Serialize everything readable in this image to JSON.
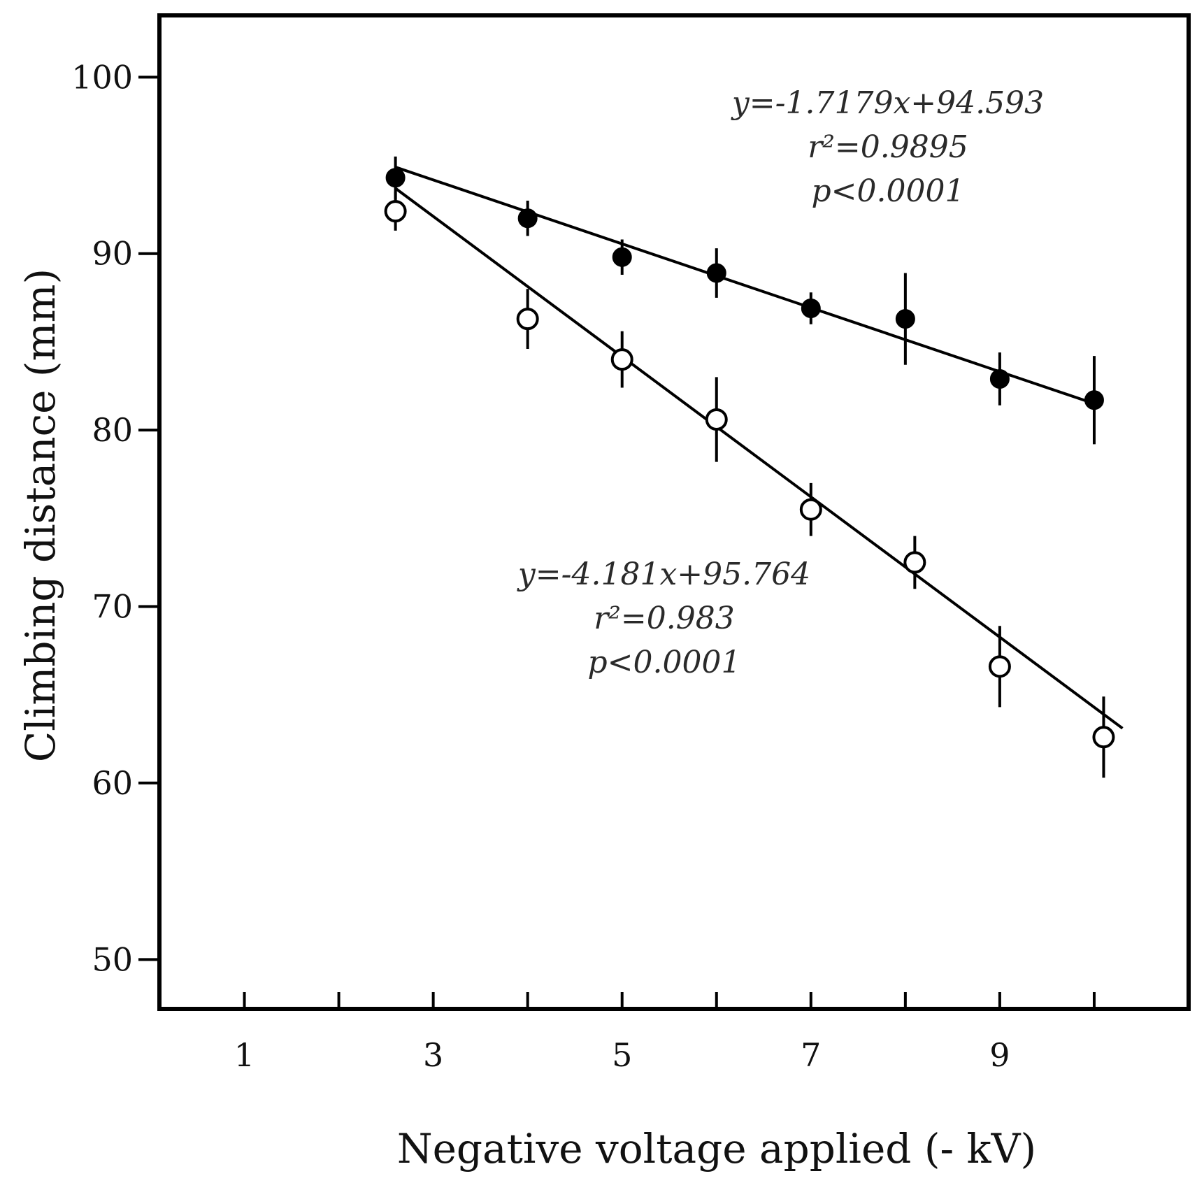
{
  "chart_data": {
    "type": "scatter",
    "xlabel": "Negative voltage applied  (- kV)",
    "ylabel": "Climbing distance (mm)",
    "xlim": [
      0.1,
      11
    ],
    "ylim": [
      47.2,
      103.5
    ],
    "xticks": [
      1,
      2,
      3,
      4,
      5,
      6,
      7,
      8,
      9,
      10
    ],
    "xtick_labels": [
      "1",
      "",
      "3",
      "",
      "5",
      "",
      "7",
      "",
      "9",
      ""
    ],
    "yticks": [
      50,
      60,
      70,
      80,
      90,
      100
    ],
    "ytick_labels": [
      "50",
      "60",
      "70",
      "80",
      "90",
      "100"
    ],
    "series": [
      {
        "name": "filled",
        "marker": "filled-circle",
        "x": [
          2.6,
          4.0,
          5.0,
          6.0,
          7.0,
          8.0,
          9.0,
          10.0
        ],
        "y": [
          94.3,
          92.0,
          89.8,
          88.9,
          86.9,
          86.3,
          82.9,
          81.7
        ],
        "err": [
          1.2,
          1.0,
          1.0,
          1.4,
          0.9,
          2.6,
          1.5,
          2.5
        ],
        "fit": {
          "x": [
            2.6,
            10.0
          ],
          "y": [
            94.9,
            81.5
          ]
        },
        "annotation": [
          "y=-1.7179x+94.593",
          "r²=0.9895",
          "p<0.0001"
        ]
      },
      {
        "name": "open",
        "marker": "open-circle",
        "x": [
          2.6,
          4.0,
          5.0,
          6.0,
          7.0,
          8.1,
          9.0,
          10.1
        ],
        "y": [
          92.4,
          86.3,
          84.0,
          80.6,
          75.5,
          72.5,
          66.6,
          62.6
        ],
        "err": [
          1.1,
          1.7,
          1.6,
          2.4,
          1.5,
          1.5,
          2.3,
          2.3
        ],
        "fit": {
          "x": [
            2.6,
            10.3
          ],
          "y": [
            93.7,
            63.1
          ]
        },
        "annotation": [
          "y=-4.181x+95.764",
          "r²=0.983",
          "p<0.0001"
        ]
      }
    ]
  }
}
